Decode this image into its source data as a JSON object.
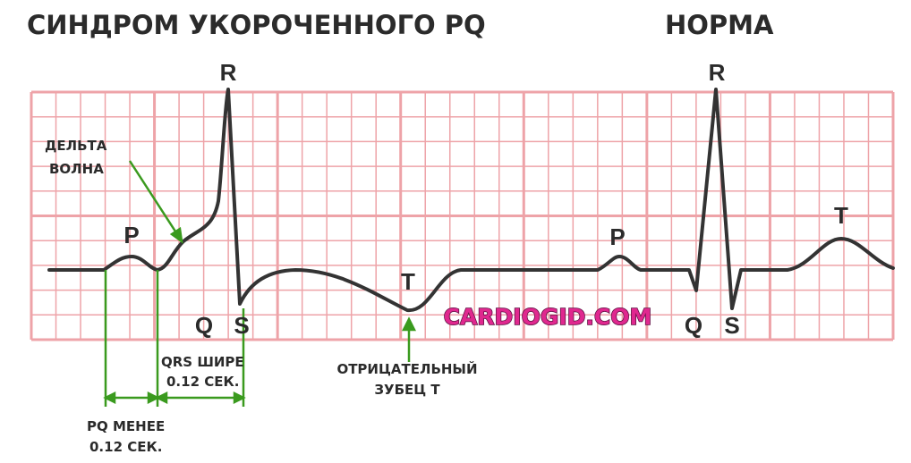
{
  "header": {
    "title": "СИНДРОМ УКОРОЧЕННОГО PQ",
    "title_right": "НОРМА"
  },
  "waves": {
    "left": [
      "P",
      "Q",
      "R",
      "S",
      "T"
    ],
    "right": [
      "P",
      "Q",
      "R",
      "S",
      "T"
    ]
  },
  "annotations": {
    "delta": [
      "ДЕЛЬТА",
      "ВОЛНА"
    ],
    "qrs": [
      "QRS ШИРЕ",
      "0.12 СЕК."
    ],
    "t_negative": [
      "ОТРИЦАТЕЛЬНЫЙ",
      "ЗУБЕЦ Т"
    ],
    "pq": [
      "PQ МЕНЕЕ",
      "0.12 СЕК."
    ]
  },
  "watermark": "CARDIOGID.COM"
}
